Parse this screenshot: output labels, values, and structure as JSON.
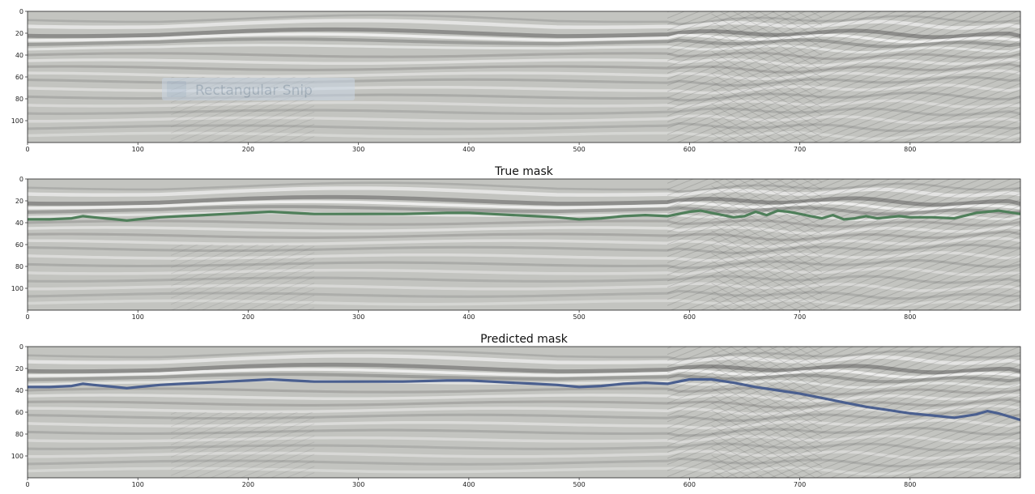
{
  "overlay": {
    "label": "Rectangular Snip"
  },
  "chart_data": [
    {
      "type": "image",
      "title": "",
      "xlim": [
        0,
        900
      ],
      "ylim": [
        120,
        0
      ],
      "xticks": [
        0,
        100,
        200,
        300,
        400,
        500,
        600,
        700,
        800
      ],
      "yticks": [
        0,
        20,
        40,
        60,
        80,
        100
      ],
      "grid": false,
      "series": []
    },
    {
      "type": "line",
      "title": "True mask",
      "xlim": [
        0,
        900
      ],
      "ylim": [
        120,
        0
      ],
      "xticks": [
        0,
        100,
        200,
        300,
        400,
        500,
        600,
        700,
        800
      ],
      "yticks": [
        0,
        20,
        40,
        60,
        80,
        100
      ],
      "grid": false,
      "line_color": "#4f7f5a",
      "series": [
        {
          "x": [
            0,
            20,
            40,
            50,
            60,
            80,
            90,
            100,
            120,
            140,
            160,
            180,
            200,
            220,
            240,
            260,
            280,
            300,
            340,
            380,
            400,
            420,
            440,
            460,
            480,
            500,
            520,
            540,
            560,
            580,
            600,
            610,
            620,
            630,
            640,
            650,
            660,
            670,
            680,
            690,
            700,
            710,
            720,
            730,
            740,
            750,
            760,
            770,
            780,
            790,
            800,
            820,
            840,
            860,
            880,
            900
          ],
          "y": [
            37,
            37,
            36,
            34,
            35,
            37,
            38,
            37,
            35,
            34,
            33,
            32,
            31,
            30,
            31,
            32,
            32,
            32,
            32,
            31,
            31,
            32,
            33,
            34,
            35,
            37,
            36,
            34,
            33,
            34,
            30,
            29,
            31,
            33,
            35,
            34,
            30,
            33,
            29,
            30,
            32,
            34,
            36,
            33,
            37,
            36,
            34,
            36,
            35,
            34,
            35,
            35,
            36,
            31,
            29,
            32
          ]
        }
      ]
    },
    {
      "type": "line",
      "title": "Predicted mask",
      "xlim": [
        0,
        900
      ],
      "ylim": [
        120,
        0
      ],
      "xticks": [
        0,
        100,
        200,
        300,
        400,
        500,
        600,
        700,
        800
      ],
      "yticks": [
        0,
        20,
        40,
        60,
        80,
        100
      ],
      "grid": false,
      "line_color": "#4a5f8f",
      "series": [
        {
          "x": [
            0,
            20,
            40,
            50,
            60,
            80,
            90,
            100,
            120,
            140,
            160,
            180,
            200,
            220,
            240,
            260,
            280,
            300,
            340,
            380,
            400,
            420,
            440,
            460,
            480,
            500,
            520,
            540,
            560,
            580,
            600,
            620,
            640,
            660,
            680,
            700,
            720,
            740,
            760,
            780,
            800,
            820,
            840,
            860,
            870,
            880,
            900
          ],
          "y": [
            37,
            37,
            36,
            34,
            35,
            37,
            38,
            37,
            35,
            34,
            33,
            32,
            31,
            30,
            31,
            32,
            32,
            32,
            32,
            31,
            31,
            32,
            33,
            34,
            35,
            37,
            36,
            34,
            33,
            34,
            30,
            30,
            33,
            37,
            40,
            43,
            47,
            51,
            55,
            58,
            61,
            63,
            65,
            62,
            59,
            61,
            67
          ]
        }
      ]
    }
  ]
}
